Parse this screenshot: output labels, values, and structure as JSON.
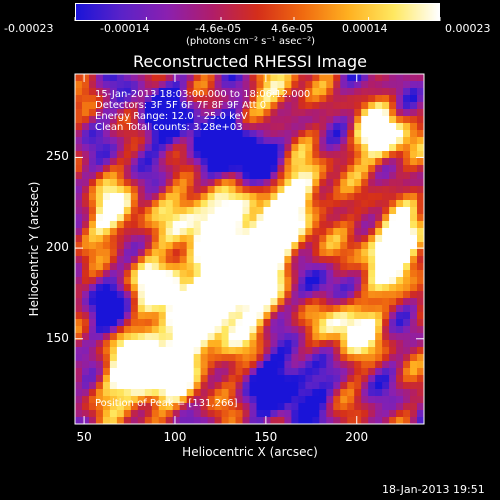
{
  "colorbar": {
    "gradient": [
      "#1a14d8",
      "#5a22c8",
      "#8a20b0",
      "#b01d6a",
      "#d42e1a",
      "#f06a10",
      "#ffb020",
      "#ffe860",
      "#ffffff"
    ],
    "tick_labels": [
      "-0.00023",
      "-0.00014",
      "-4.6e-05",
      "4.6e-05",
      "0.00014",
      "0.00023"
    ],
    "unit": "(photons cm⁻² s⁻¹ asec⁻²)"
  },
  "chart_data": {
    "type": "heatmap",
    "title": "Reconstructed RHESSI Image",
    "xlabel": "Heliocentric X (arcsec)",
    "ylabel": "Heliocentric Y (arcsec)",
    "xlim": [
      45,
      237
    ],
    "ylim": [
      103,
      296
    ],
    "x_ticks": [
      50,
      100,
      150,
      200
    ],
    "y_ticks": [
      150,
      200,
      250
    ],
    "colorbar_range": [
      -0.00023,
      0.00023
    ],
    "peak_position": [
      131,
      266
    ],
    "annotations": [
      "15-Jan-2013 18:03:00.000 to 18:06:12.000",
      "Detectors: 3F 5F 6F 7F 8F 9F Att 0",
      "Energy Range: 12.0 - 25.0 keV",
      "Clean    Total counts: 3.28e+03"
    ],
    "peak_label": "Position of Peak = [131,266]"
  },
  "footer": {
    "timestamp": "18-Jan-2013 19:51"
  }
}
